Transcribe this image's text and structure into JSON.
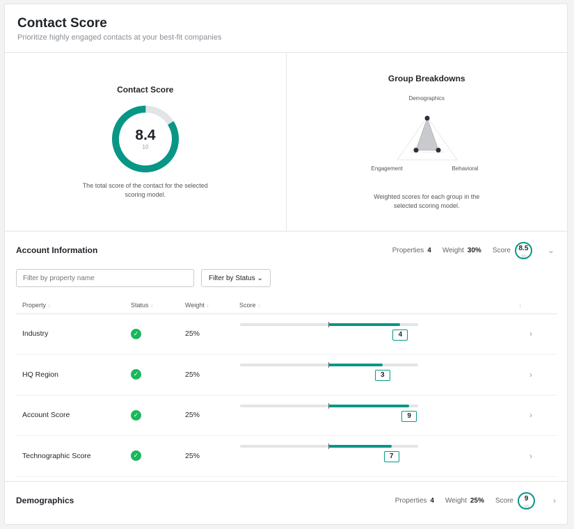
{
  "header": {
    "title": "Contact Score",
    "subtitle": "Prioritize highly engaged contacts at your best-fit companies"
  },
  "contact_score": {
    "title": "Contact Score",
    "value": "8.4",
    "max": "10",
    "fraction": 0.84,
    "description": "The total score of the contact for the selected scoring model."
  },
  "group_breakdowns": {
    "title": "Group Breakdowns",
    "axes": [
      "Demographics",
      "Behavioral",
      "Engagement"
    ],
    "description": "Weighted scores for each group in the selected scoring model."
  },
  "account_info": {
    "title": "Account Information",
    "properties_label": "Properties",
    "properties": "4",
    "weight_label": "Weight",
    "weight": "30%",
    "score_label": "Score",
    "score": "8.5",
    "score_max": "10",
    "filter_placeholder": "Filter by property name",
    "filter_status": "Filter by Status ⌄",
    "columns": [
      "Property",
      "Status",
      "Weight",
      "Score"
    ],
    "rows": [
      {
        "property": "Industry",
        "weight": "25%",
        "score": "4",
        "bar_fill": 0.9
      },
      {
        "property": "HQ Region",
        "weight": "25%",
        "score": "3",
        "bar_fill": 0.8
      },
      {
        "property": "Account Score",
        "weight": "25%",
        "score": "9",
        "bar_fill": 0.95
      },
      {
        "property": "Technographic Score",
        "weight": "25%",
        "score": "7",
        "bar_fill": 0.85
      }
    ]
  },
  "demographics": {
    "title": "Demographics",
    "properties_label": "Properties",
    "properties": "4",
    "weight_label": "Weight",
    "weight": "25%",
    "score_label": "Score",
    "score": "9",
    "score_max": "10"
  },
  "colors": {
    "accent": "#089686",
    "status_ok": "#1ab85c"
  }
}
